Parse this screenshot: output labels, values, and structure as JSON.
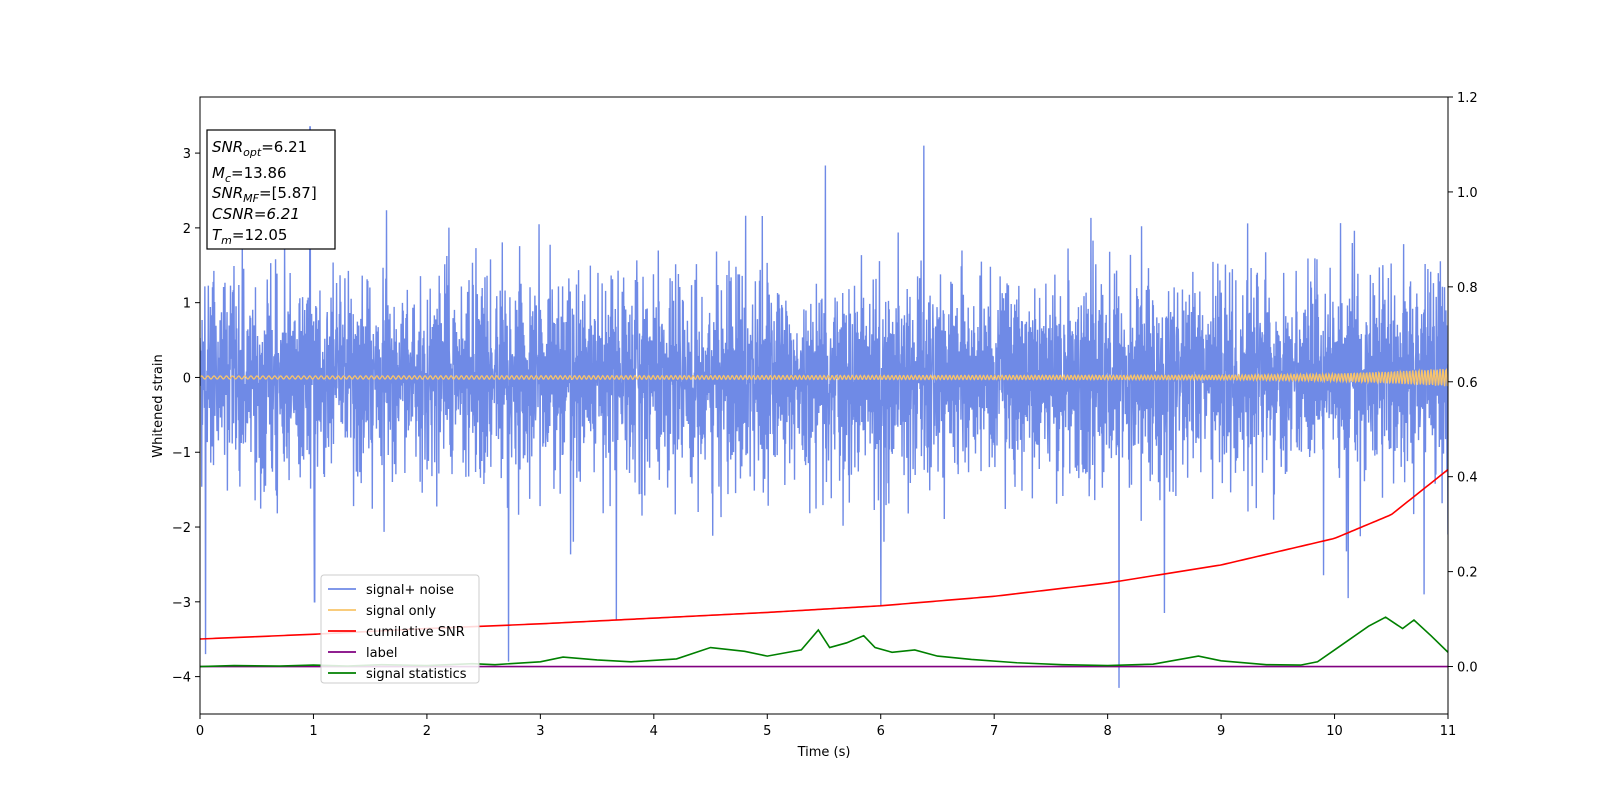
{
  "chart_data": {
    "type": "line",
    "xlabel": "Time (s)",
    "ylabel": "Whitened strain",
    "xlim": [
      0,
      11
    ],
    "ylim": [
      -4.5,
      3.75
    ],
    "y2lim": [
      -0.1,
      1.2
    ],
    "x_ticks": [
      0,
      1,
      2,
      3,
      4,
      5,
      6,
      7,
      8,
      9,
      10,
      11
    ],
    "y_ticks": [
      -4,
      -3,
      -2,
      -1,
      0,
      1,
      2,
      3
    ],
    "y2_ticks": [
      0.0,
      0.2,
      0.4,
      0.6,
      0.8,
      1.0,
      1.2
    ],
    "annotation": {
      "snr_opt": "=6.21",
      "mc": "=13.86",
      "snr_mf": "=[5.87]",
      "csnr": "CSNR=6.21",
      "tm": "=12.05"
    },
    "legend_position": "lower-left",
    "series": [
      {
        "name": "signal+ noise",
        "color": "#6f8ae6",
        "axis": "left",
        "description_values": "dense noise, approx. amplitude 1.9",
        "envelope_spikes": [
          [
            0.05,
            -3.7
          ],
          [
            0.97,
            3.35
          ],
          [
            1.01,
            -3.0
          ],
          [
            2.42,
            -0.65
          ],
          [
            2.72,
            -3.8
          ],
          [
            3.67,
            -3.25
          ],
          [
            6.38,
            3.1
          ],
          [
            6.0,
            -3.05
          ],
          [
            8.1,
            -4.15
          ],
          [
            8.05,
            -0.7
          ],
          [
            8.5,
            -3.15
          ],
          [
            10.12,
            -2.95
          ],
          [
            10.79,
            -2.9
          ],
          [
            11.0,
            -2.1
          ]
        ]
      },
      {
        "name": "signal only",
        "color": "#f8c46a",
        "axis": "left",
        "x": [
          0,
          9,
          10,
          10.5,
          11
        ],
        "amplitude": [
          0.02,
          0.03,
          0.05,
          0.08,
          0.12
        ]
      },
      {
        "name": "cumilative SNR",
        "color": "#ff0000",
        "axis": "right",
        "x": [
          0,
          1,
          2,
          3,
          4,
          5,
          6,
          7,
          8,
          9,
          10,
          10.5,
          11
        ],
        "values": [
          0.058,
          0.068,
          0.08,
          0.09,
          0.102,
          0.114,
          0.128,
          0.148,
          0.176,
          0.214,
          0.27,
          0.32,
          0.415
        ]
      },
      {
        "name": "label",
        "color": "#800080",
        "axis": "right",
        "x": [
          0,
          11
        ],
        "values": [
          0.0,
          0.0
        ]
      },
      {
        "name": "signal statistics",
        "color": "#008000",
        "axis": "right",
        "x": [
          0,
          0.3,
          0.7,
          1.0,
          1.3,
          1.6,
          2.0,
          2.4,
          2.6,
          3.0,
          3.2,
          3.5,
          3.8,
          4.2,
          4.5,
          4.8,
          5.0,
          5.3,
          5.45,
          5.55,
          5.7,
          5.85,
          5.95,
          6.1,
          6.3,
          6.5,
          6.8,
          7.2,
          7.6,
          8.0,
          8.4,
          8.8,
          9.0,
          9.4,
          9.7,
          9.85,
          10.0,
          10.15,
          10.3,
          10.45,
          10.6,
          10.7,
          10.85,
          11.0
        ],
        "values": [
          0.0,
          0.002,
          0.001,
          0.003,
          0.001,
          0.004,
          0.002,
          0.006,
          0.004,
          0.01,
          0.02,
          0.014,
          0.01,
          0.016,
          0.04,
          0.032,
          0.022,
          0.035,
          0.077,
          0.04,
          0.05,
          0.065,
          0.04,
          0.03,
          0.035,
          0.022,
          0.015,
          0.008,
          0.004,
          0.002,
          0.005,
          0.022,
          0.012,
          0.004,
          0.003,
          0.01,
          0.035,
          0.06,
          0.085,
          0.104,
          0.08,
          0.098,
          0.065,
          0.03
        ]
      }
    ]
  }
}
